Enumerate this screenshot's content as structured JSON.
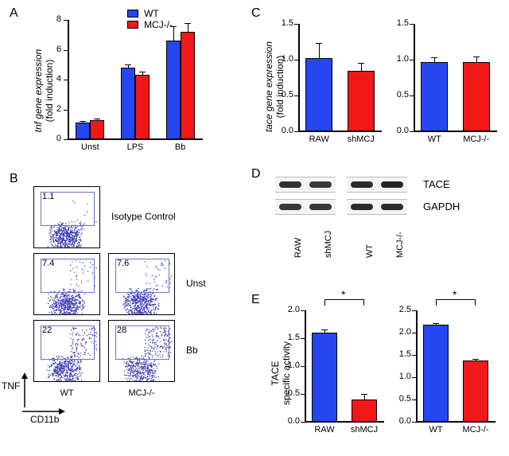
{
  "colors": {
    "WT": "#2546f0",
    "MCJ": "#f01818",
    "axis": "#000000",
    "gate": "#6a6fd0",
    "dot": "#3a3ab0"
  },
  "panelA": {
    "label": "A",
    "y_title_line1": "tnf gene expression",
    "y_title_line2": "(fold induction)",
    "ylim": [
      0,
      8
    ],
    "ytick_step": 2,
    "categories": [
      "Unst",
      "LPS",
      "Bb"
    ],
    "series": [
      {
        "name": "WT",
        "color_key": "WT",
        "values": [
          1.1,
          4.8,
          6.6
        ],
        "err": [
          0.15,
          0.2,
          1.0
        ]
      },
      {
        "name": "MCJ-/-",
        "color_key": "MCJ",
        "values": [
          1.3,
          4.3,
          7.2
        ],
        "err": [
          0.1,
          0.25,
          0.6
        ]
      }
    ],
    "legend": [
      {
        "swatch": "WT",
        "label": "WT"
      },
      {
        "swatch": "MCJ",
        "label": "MCJ-/-"
      }
    ]
  },
  "panelB": {
    "label": "B",
    "y_axis": "TNF",
    "x_axis": "CD11b",
    "col_labels": [
      "WT",
      "MCJ-/-"
    ],
    "rows": [
      {
        "label": "Isotype Control",
        "plots": [
          {
            "gate_pct": "1.1"
          }
        ]
      },
      {
        "label": "Unst",
        "plots": [
          {
            "gate_pct": "7.4"
          },
          {
            "gate_pct": "7.6"
          }
        ]
      },
      {
        "label": "Bb",
        "plots": [
          {
            "gate_pct": "22"
          },
          {
            "gate_pct": "28"
          }
        ]
      }
    ]
  },
  "panelC": {
    "label": "C",
    "y_title_line1": "tace gene expression",
    "y_title_line2": "(fold induction)",
    "charts": [
      {
        "ylim": [
          0.0,
          1.5
        ],
        "yticks": [
          0.0,
          0.5,
          1.0,
          1.5
        ],
        "categories": [
          "RAW",
          "shMCJ"
        ],
        "bars": [
          {
            "color_key": "WT",
            "value": 1.02,
            "err": 0.21
          },
          {
            "color_key": "MCJ",
            "value": 0.84,
            "err": 0.12
          }
        ]
      },
      {
        "ylim": [
          0.0,
          1.5
        ],
        "yticks": [
          0.0,
          0.5,
          1.0,
          1.5
        ],
        "categories": [
          "WT",
          "MCJ-/-"
        ],
        "bars": [
          {
            "color_key": "WT",
            "value": 0.97,
            "err": 0.06
          },
          {
            "color_key": "MCJ",
            "value": 0.97,
            "err": 0.08
          }
        ]
      }
    ]
  },
  "panelD": {
    "label": "D",
    "row_labels": [
      "TACE",
      "GAPDH"
    ],
    "groups": [
      {
        "lanes": [
          "RAW",
          "shMCJ"
        ]
      },
      {
        "lanes": [
          "WT",
          "MCJ-/-"
        ]
      }
    ],
    "bands": {
      "TACE": [
        [
          0.85,
          0.8
        ],
        [
          0.9,
          0.95
        ]
      ],
      "GAPDH": [
        [
          0.8,
          0.8
        ],
        [
          0.9,
          0.9
        ]
      ]
    }
  },
  "panelE": {
    "label": "E",
    "y_title_line1": "TACE",
    "y_title_line2": "specific activity",
    "charts": [
      {
        "ylim": [
          0.0,
          2.0
        ],
        "yticks": [
          0.0,
          0.5,
          1.0,
          1.5,
          2.0
        ],
        "categories": [
          "RAW",
          "shMCJ"
        ],
        "bars": [
          {
            "color_key": "WT",
            "value": 1.6,
            "err": 0.06
          },
          {
            "color_key": "MCJ",
            "value": 0.4,
            "err": 0.1
          }
        ],
        "sig": "*"
      },
      {
        "ylim": [
          0.0,
          2.5
        ],
        "yticks": [
          0.0,
          0.5,
          1.0,
          1.5,
          2.0,
          2.5
        ],
        "categories": [
          "WT",
          "MCJ-/-"
        ],
        "bars": [
          {
            "color_key": "WT",
            "value": 2.18,
            "err": 0.03
          },
          {
            "color_key": "MCJ",
            "value": 1.38,
            "err": 0.03
          }
        ],
        "sig": "*"
      }
    ]
  }
}
